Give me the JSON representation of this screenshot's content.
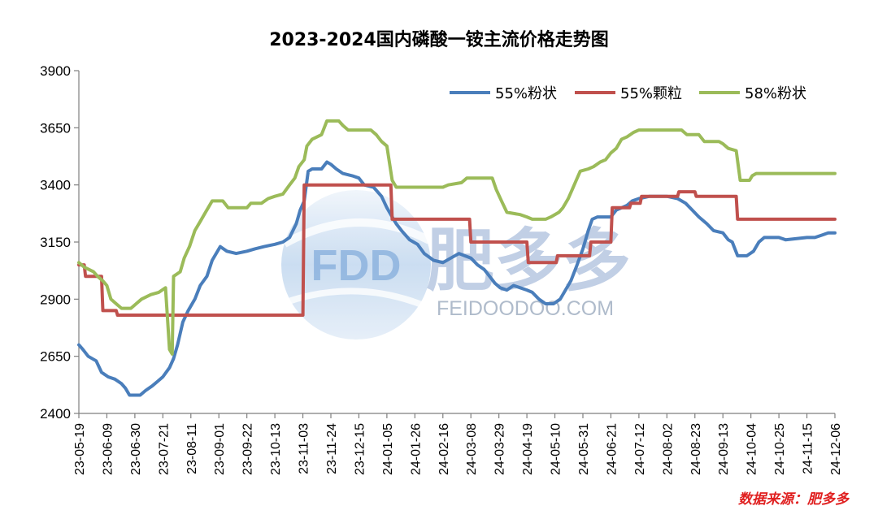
{
  "chart_data": {
    "type": "line",
    "title": "2023-2024国内磷酸一铵主流价格走势图",
    "ylim": [
      2400,
      3900
    ],
    "yticks": [
      2400,
      2650,
      2900,
      3150,
      3400,
      3650,
      3900
    ],
    "xlim": [
      "2023-05-19",
      "2024-12-06"
    ],
    "xticks": [
      "23-05-19",
      "23-06-09",
      "23-06-30",
      "23-07-21",
      "23-08-11",
      "23-09-01",
      "23-09-22",
      "23-10-13",
      "23-11-03",
      "23-11-24",
      "23-12-15",
      "24-01-05",
      "24-01-26",
      "24-02-16",
      "24-03-08",
      "24-03-29",
      "24-04-19",
      "24-05-10",
      "24-05-31",
      "24-06-21",
      "24-07-12",
      "24-08-02",
      "24-08-23",
      "24-09-13",
      "24-10-04",
      "24-10-25",
      "24-11-15",
      "24-12-06"
    ],
    "legend_position": "top-right",
    "grid": false,
    "series": [
      {
        "name": "55%粉状",
        "color": "#4a7ebb",
        "points": [
          [
            "2023-05-19",
            2700
          ],
          [
            "2023-05-22",
            2680
          ],
          [
            "2023-05-26",
            2650
          ],
          [
            "2023-06-01",
            2630
          ],
          [
            "2023-06-05",
            2580
          ],
          [
            "2023-06-10",
            2560
          ],
          [
            "2023-06-15",
            2550
          ],
          [
            "2023-06-20",
            2530
          ],
          [
            "2023-06-23",
            2510
          ],
          [
            "2023-06-26",
            2480
          ],
          [
            "2023-07-04",
            2480
          ],
          [
            "2023-07-08",
            2500
          ],
          [
            "2023-07-13",
            2520
          ],
          [
            "2023-07-17",
            2540
          ],
          [
            "2023-07-21",
            2560
          ],
          [
            "2023-07-26",
            2600
          ],
          [
            "2023-07-29",
            2640
          ],
          [
            "2023-08-01",
            2700
          ],
          [
            "2023-08-05",
            2800
          ],
          [
            "2023-08-09",
            2850
          ],
          [
            "2023-08-14",
            2900
          ],
          [
            "2023-08-18",
            2960
          ],
          [
            "2023-08-23",
            3000
          ],
          [
            "2023-08-27",
            3070
          ],
          [
            "2023-09-02",
            3130
          ],
          [
            "2023-09-07",
            3110
          ],
          [
            "2023-09-14",
            3100
          ],
          [
            "2023-09-22",
            3110
          ],
          [
            "2023-09-28",
            3120
          ],
          [
            "2023-10-05",
            3130
          ],
          [
            "2023-10-13",
            3140
          ],
          [
            "2023-10-19",
            3150
          ],
          [
            "2023-10-24",
            3170
          ],
          [
            "2023-10-29",
            3230
          ],
          [
            "2023-11-01",
            3290
          ],
          [
            "2023-11-04",
            3330
          ],
          [
            "2023-11-07",
            3460
          ],
          [
            "2023-11-10",
            3470
          ],
          [
            "2023-11-17",
            3470
          ],
          [
            "2023-11-21",
            3500
          ],
          [
            "2023-11-24",
            3490
          ],
          [
            "2023-11-28",
            3470
          ],
          [
            "2023-12-03",
            3450
          ],
          [
            "2023-12-10",
            3440
          ],
          [
            "2023-12-15",
            3430
          ],
          [
            "2023-12-19",
            3400
          ],
          [
            "2023-12-26",
            3390
          ],
          [
            "2024-01-01",
            3350
          ],
          [
            "2024-01-05",
            3300
          ],
          [
            "2024-01-09",
            3260
          ],
          [
            "2024-01-12",
            3230
          ],
          [
            "2024-01-16",
            3200
          ],
          [
            "2024-01-22",
            3160
          ],
          [
            "2024-01-28",
            3140
          ],
          [
            "2024-02-02",
            3100
          ],
          [
            "2024-02-09",
            3070
          ],
          [
            "2024-02-16",
            3060
          ],
          [
            "2024-02-22",
            3080
          ],
          [
            "2024-02-28",
            3100
          ],
          [
            "2024-03-08",
            3080
          ],
          [
            "2024-03-13",
            3050
          ],
          [
            "2024-03-18",
            3030
          ],
          [
            "2024-03-22",
            3000
          ],
          [
            "2024-03-26",
            2970
          ],
          [
            "2024-03-30",
            2950
          ],
          [
            "2024-04-04",
            2940
          ],
          [
            "2024-04-09",
            2960
          ],
          [
            "2024-04-14",
            2950
          ],
          [
            "2024-04-19",
            2940
          ],
          [
            "2024-04-23",
            2930
          ],
          [
            "2024-04-28",
            2900
          ],
          [
            "2024-05-03",
            2880
          ],
          [
            "2024-05-09",
            2880
          ],
          [
            "2024-05-14",
            2900
          ],
          [
            "2024-05-17",
            2930
          ],
          [
            "2024-05-22",
            2980
          ],
          [
            "2024-05-26",
            3040
          ],
          [
            "2024-05-31",
            3120
          ],
          [
            "2024-06-04",
            3200
          ],
          [
            "2024-06-07",
            3250
          ],
          [
            "2024-06-11",
            3260
          ],
          [
            "2024-06-21",
            3260
          ],
          [
            "2024-06-25",
            3290
          ],
          [
            "2024-06-29",
            3300
          ],
          [
            "2024-07-03",
            3310
          ],
          [
            "2024-07-07",
            3330
          ],
          [
            "2024-07-12",
            3340
          ],
          [
            "2024-07-20",
            3350
          ],
          [
            "2024-08-02",
            3350
          ],
          [
            "2024-08-10",
            3340
          ],
          [
            "2024-08-16",
            3320
          ],
          [
            "2024-08-21",
            3290
          ],
          [
            "2024-08-26",
            3260
          ],
          [
            "2024-09-01",
            3230
          ],
          [
            "2024-09-06",
            3200
          ],
          [
            "2024-09-13",
            3190
          ],
          [
            "2024-09-17",
            3160
          ],
          [
            "2024-09-20",
            3150
          ],
          [
            "2024-09-24",
            3090
          ],
          [
            "2024-10-01",
            3090
          ],
          [
            "2024-10-06",
            3110
          ],
          [
            "2024-10-10",
            3150
          ],
          [
            "2024-10-14",
            3170
          ],
          [
            "2024-10-25",
            3170
          ],
          [
            "2024-10-30",
            3160
          ],
          [
            "2024-11-15",
            3170
          ],
          [
            "2024-11-21",
            3170
          ],
          [
            "2024-11-26",
            3180
          ],
          [
            "2024-12-01",
            3190
          ],
          [
            "2024-12-06",
            3190
          ]
        ]
      },
      {
        "name": "55%颗粒",
        "color": "#c0504d",
        "points": [
          [
            "2023-05-19",
            3050
          ],
          [
            "2023-05-23",
            3050
          ],
          [
            "2023-05-24",
            3000
          ],
          [
            "2023-06-05",
            3000
          ],
          [
            "2023-06-06",
            2850
          ],
          [
            "2023-06-16",
            2850
          ],
          [
            "2023-06-17",
            2830
          ],
          [
            "2023-11-03",
            2830
          ],
          [
            "2023-11-04",
            3400
          ],
          [
            "2024-01-08",
            3400
          ],
          [
            "2024-01-09",
            3250
          ],
          [
            "2024-03-07",
            3250
          ],
          [
            "2024-03-08",
            3150
          ],
          [
            "2024-04-19",
            3150
          ],
          [
            "2024-04-20",
            3060
          ],
          [
            "2024-05-11",
            3060
          ],
          [
            "2024-05-12",
            3090
          ],
          [
            "2024-06-05",
            3090
          ],
          [
            "2024-06-06",
            3150
          ],
          [
            "2024-06-21",
            3150
          ],
          [
            "2024-06-22",
            3300
          ],
          [
            "2024-07-05",
            3300
          ],
          [
            "2024-07-06",
            3320
          ],
          [
            "2024-07-13",
            3320
          ],
          [
            "2024-07-14",
            3350
          ],
          [
            "2024-08-10",
            3350
          ],
          [
            "2024-08-11",
            3370
          ],
          [
            "2024-08-23",
            3370
          ],
          [
            "2024-08-24",
            3350
          ],
          [
            "2024-09-23",
            3350
          ],
          [
            "2024-09-24",
            3250
          ],
          [
            "2024-12-06",
            3250
          ]
        ]
      },
      {
        "name": "58%粉状",
        "color": "#9bbb59",
        "points": [
          [
            "2023-05-19",
            3060
          ],
          [
            "2023-05-23",
            3040
          ],
          [
            "2023-05-30",
            3020
          ],
          [
            "2023-06-02",
            3000
          ],
          [
            "2023-06-06",
            2980
          ],
          [
            "2023-06-09",
            2960
          ],
          [
            "2023-06-12",
            2900
          ],
          [
            "2023-06-16",
            2880
          ],
          [
            "2023-06-20",
            2860
          ],
          [
            "2023-06-27",
            2860
          ],
          [
            "2023-07-01",
            2880
          ],
          [
            "2023-07-05",
            2900
          ],
          [
            "2023-07-12",
            2920
          ],
          [
            "2023-07-18",
            2930
          ],
          [
            "2023-07-23",
            2950
          ],
          [
            "2023-07-26",
            2680
          ],
          [
            "2023-07-28",
            2660
          ],
          [
            "2023-07-29",
            3000
          ],
          [
            "2023-08-03",
            3020
          ],
          [
            "2023-08-06",
            3080
          ],
          [
            "2023-08-10",
            3130
          ],
          [
            "2023-08-14",
            3200
          ],
          [
            "2023-08-18",
            3240
          ],
          [
            "2023-08-22",
            3280
          ],
          [
            "2023-08-27",
            3330
          ],
          [
            "2023-09-04",
            3330
          ],
          [
            "2023-09-08",
            3300
          ],
          [
            "2023-09-22",
            3300
          ],
          [
            "2023-09-25",
            3320
          ],
          [
            "2023-10-03",
            3320
          ],
          [
            "2023-10-08",
            3340
          ],
          [
            "2023-10-13",
            3350
          ],
          [
            "2023-10-19",
            3360
          ],
          [
            "2023-10-24",
            3400
          ],
          [
            "2023-10-28",
            3430
          ],
          [
            "2023-10-31",
            3480
          ],
          [
            "2023-11-04",
            3510
          ],
          [
            "2023-11-06",
            3570
          ],
          [
            "2023-11-10",
            3600
          ],
          [
            "2023-11-17",
            3620
          ],
          [
            "2023-11-21",
            3680
          ],
          [
            "2023-11-30",
            3680
          ],
          [
            "2023-12-03",
            3660
          ],
          [
            "2023-12-07",
            3640
          ],
          [
            "2023-12-24",
            3640
          ],
          [
            "2023-12-28",
            3620
          ],
          [
            "2024-01-01",
            3590
          ],
          [
            "2024-01-05",
            3570
          ],
          [
            "2024-01-09",
            3420
          ],
          [
            "2024-01-12",
            3390
          ],
          [
            "2024-02-16",
            3390
          ],
          [
            "2024-02-20",
            3400
          ],
          [
            "2024-03-01",
            3410
          ],
          [
            "2024-03-05",
            3430
          ],
          [
            "2024-03-24",
            3430
          ],
          [
            "2024-03-27",
            3380
          ],
          [
            "2024-03-31",
            3330
          ],
          [
            "2024-04-04",
            3280
          ],
          [
            "2024-04-14",
            3270
          ],
          [
            "2024-04-19",
            3260
          ],
          [
            "2024-04-23",
            3250
          ],
          [
            "2024-05-03",
            3250
          ],
          [
            "2024-05-07",
            3260
          ],
          [
            "2024-05-13",
            3280
          ],
          [
            "2024-05-16",
            3300
          ],
          [
            "2024-05-20",
            3340
          ],
          [
            "2024-05-23",
            3380
          ],
          [
            "2024-05-26",
            3420
          ],
          [
            "2024-05-29",
            3460
          ],
          [
            "2024-06-04",
            3470
          ],
          [
            "2024-06-08",
            3480
          ],
          [
            "2024-06-13",
            3500
          ],
          [
            "2024-06-17",
            3510
          ],
          [
            "2024-06-21",
            3540
          ],
          [
            "2024-06-25",
            3560
          ],
          [
            "2024-06-29",
            3600
          ],
          [
            "2024-07-03",
            3610
          ],
          [
            "2024-07-08",
            3630
          ],
          [
            "2024-07-12",
            3640
          ],
          [
            "2024-08-13",
            3640
          ],
          [
            "2024-08-17",
            3620
          ],
          [
            "2024-08-26",
            3620
          ],
          [
            "2024-08-30",
            3590
          ],
          [
            "2024-09-10",
            3590
          ],
          [
            "2024-09-13",
            3580
          ],
          [
            "2024-09-17",
            3560
          ],
          [
            "2024-09-23",
            3550
          ],
          [
            "2024-09-26",
            3420
          ],
          [
            "2024-10-03",
            3420
          ],
          [
            "2024-10-05",
            3440
          ],
          [
            "2024-10-08",
            3450
          ],
          [
            "2024-12-06",
            3450
          ]
        ]
      }
    ]
  },
  "source_text": "数据来源：肥多多",
  "watermark": {
    "logo_text": "FDD",
    "brand_name": "肥多多",
    "url_text": "FEIDOODOO.COM"
  }
}
